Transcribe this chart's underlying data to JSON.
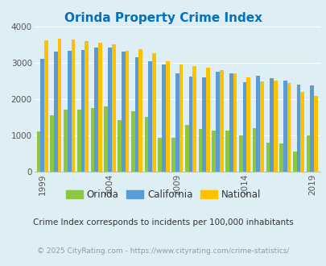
{
  "title": "Orinda Property Crime Index",
  "years": [
    1999,
    2000,
    2001,
    2002,
    2003,
    2004,
    2005,
    2006,
    2007,
    2008,
    2009,
    2010,
    2011,
    2012,
    2013,
    2014,
    2015,
    2016,
    2017,
    2018,
    2019,
    2020
  ],
  "orinda": [
    1100,
    1550,
    1700,
    1720,
    1750,
    1800,
    1430,
    1660,
    1520,
    920,
    930,
    1280,
    1180,
    1140,
    1130,
    1000,
    1190,
    800,
    780,
    560,
    1000,
    null
  ],
  "california": [
    3100,
    3300,
    3340,
    3360,
    3430,
    3420,
    3300,
    3160,
    3050,
    2950,
    2720,
    2630,
    2590,
    2760,
    2700,
    2460,
    2640,
    2580,
    2500,
    2390,
    2370,
    null
  ],
  "national": [
    3620,
    3670,
    3650,
    3600,
    3560,
    3500,
    3340,
    3380,
    3260,
    3050,
    2960,
    2920,
    2870,
    2800,
    2710,
    2600,
    2490,
    2500,
    2440,
    2200,
    2080,
    null
  ],
  "orinda_color": "#8dc63f",
  "california_color": "#5b9bd5",
  "national_color": "#ffc000",
  "bg_color": "#ddeef5",
  "plot_bg": "#ddeef5",
  "title_color": "#0070c0",
  "subtitle": "Crime Index corresponds to incidents per 100,000 inhabitants",
  "footer": "© 2025 CityRating.com - https://www.cityrating.com/crime-statistics/",
  "ylim": [
    0,
    4000
  ],
  "yticks": [
    0,
    1000,
    2000,
    3000,
    4000
  ],
  "xlabel_ticks": [
    1999,
    2004,
    2009,
    2014,
    2019
  ]
}
